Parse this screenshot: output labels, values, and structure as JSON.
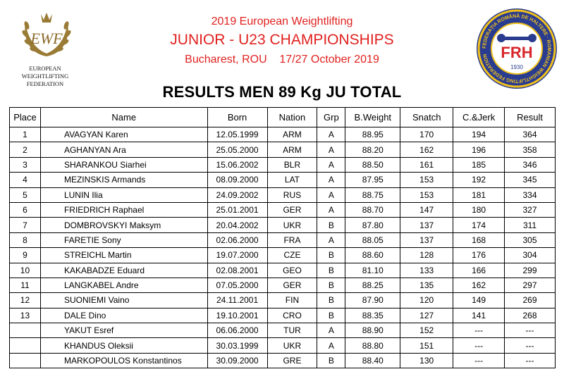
{
  "federation_logo": {
    "abbr": "EWF",
    "name_line1": "EUROPEAN WEIGHTLIFTING",
    "name_line2": "FEDERATION"
  },
  "host_logo": {
    "ring_text": "FEDERAȚIA ROMÂNĂ DE HALTERE · ROMANIAN WEIGHTLIFTING FEDERATION",
    "letters": "FRH",
    "year": "1930"
  },
  "header": {
    "line1": "2019 European Weightlifting",
    "line2": "JUNIOR - U23 CHAMPIONSHIPS",
    "line3": "Bucharest, ROU    17/27 October 2019"
  },
  "title": "RESULTS MEN 89 Kg JU TOTAL",
  "columns": [
    "Place",
    "Name",
    "Born",
    "Nation",
    "Grp",
    "B.Weight",
    "Snatch",
    "C.&Jerk",
    "Result"
  ],
  "rows": [
    {
      "place": "1",
      "name": "AVAGYAN Karen",
      "born": "12.05.1999",
      "nation": "ARM",
      "grp": "A",
      "bweight": "88.95",
      "snatch": "170",
      "cj": "194",
      "result": "364"
    },
    {
      "place": "2",
      "name": "AGHANYAN Ara",
      "born": "25.05.2000",
      "nation": "ARM",
      "grp": "A",
      "bweight": "88.20",
      "snatch": "162",
      "cj": "196",
      "result": "358"
    },
    {
      "place": "3",
      "name": "SHARANKOU Siarhei",
      "born": "15.06.2002",
      "nation": "BLR",
      "grp": "A",
      "bweight": "88.50",
      "snatch": "161",
      "cj": "185",
      "result": "346"
    },
    {
      "place": "4",
      "name": "MEZINSKIS Armands",
      "born": "08.09.2000",
      "nation": "LAT",
      "grp": "A",
      "bweight": "87.95",
      "snatch": "153",
      "cj": "192",
      "result": "345"
    },
    {
      "place": "5",
      "name": "LUNIN Ilia",
      "born": "24.09.2002",
      "nation": "RUS",
      "grp": "A",
      "bweight": "88.75",
      "snatch": "153",
      "cj": "181",
      "result": "334"
    },
    {
      "place": "6",
      "name": "FRIEDRICH Raphael",
      "born": "25.01.2001",
      "nation": "GER",
      "grp": "A",
      "bweight": "88.70",
      "snatch": "147",
      "cj": "180",
      "result": "327"
    },
    {
      "place": "7",
      "name": "DOMBROVSKYI Maksym",
      "born": "20.04.2002",
      "nation": "UKR",
      "grp": "B",
      "bweight": "87.80",
      "snatch": "137",
      "cj": "174",
      "result": "311"
    },
    {
      "place": "8",
      "name": "FARETIE Sony",
      "born": "02.06.2000",
      "nation": "FRA",
      "grp": "A",
      "bweight": "88.05",
      "snatch": "137",
      "cj": "168",
      "result": "305"
    },
    {
      "place": "9",
      "name": "STREICHL Martin",
      "born": "19.07.2000",
      "nation": "CZE",
      "grp": "B",
      "bweight": "88.60",
      "snatch": "128",
      "cj": "176",
      "result": "304"
    },
    {
      "place": "10",
      "name": "KAKABADZE Eduard",
      "born": "02.08.2001",
      "nation": "GEO",
      "grp": "B",
      "bweight": "81.10",
      "snatch": "133",
      "cj": "166",
      "result": "299"
    },
    {
      "place": "11",
      "name": "LANGKABEL Andre",
      "born": "07.05.2000",
      "nation": "GER",
      "grp": "B",
      "bweight": "88.25",
      "snatch": "135",
      "cj": "162",
      "result": "297"
    },
    {
      "place": "12",
      "name": "SUONIEMI Vaino",
      "born": "24.11.2001",
      "nation": "FIN",
      "grp": "B",
      "bweight": "87.90",
      "snatch": "120",
      "cj": "149",
      "result": "269"
    },
    {
      "place": "13",
      "name": "DALE Dino",
      "born": "19.10.2001",
      "nation": "CRO",
      "grp": "B",
      "bweight": "88.35",
      "snatch": "127",
      "cj": "141",
      "result": "268"
    },
    {
      "place": "",
      "name": "YAKUT Esref",
      "born": "06.06.2000",
      "nation": "TUR",
      "grp": "A",
      "bweight": "88.90",
      "snatch": "152",
      "cj": "---",
      "result": "---"
    },
    {
      "place": "",
      "name": "KHANDUS Oleksii",
      "born": "30.03.1999",
      "nation": "UKR",
      "grp": "A",
      "bweight": "88.80",
      "snatch": "151",
      "cj": "---",
      "result": "---"
    },
    {
      "place": "",
      "name": "MARKOPOULOS Konstantinos",
      "born": "30.09.2000",
      "nation": "GRE",
      "grp": "B",
      "bweight": "88.40",
      "snatch": "130",
      "cj": "---",
      "result": "---"
    }
  ]
}
